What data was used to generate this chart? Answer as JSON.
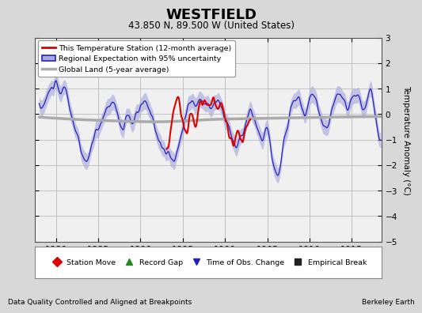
{
  "title": "WESTFIELD",
  "subtitle": "43.850 N, 89.500 W (United States)",
  "ylabel": "Temperature Anomaly (°C)",
  "xlabel_years": [
    1880,
    1885,
    1890,
    1895,
    1900,
    1905,
    1910,
    1915
  ],
  "xlim": [
    1877.5,
    1918.5
  ],
  "ylim": [
    -5,
    3
  ],
  "yticks": [
    -5,
    -4,
    -3,
    -2,
    -1,
    0,
    1,
    2,
    3
  ],
  "background_color": "#d8d8d8",
  "plot_bg_color": "#f0f0f0",
  "grid_color": "#bbbbbb",
  "footer_left": "Data Quality Controlled and Aligned at Breakpoints",
  "footer_right": "Berkeley Earth",
  "red_color": "#dd0000",
  "blue_color": "#2222bb",
  "blue_fill": "#aaaadd",
  "gray_color": "#aaaaaa",
  "legend1_items": [
    {
      "label": "This Temperature Station (12-month average)",
      "color": "#dd0000",
      "lw": 2.0
    },
    {
      "label": "Regional Expectation with 95% uncertainty",
      "color": "#2222bb",
      "fill": "#aaaadd",
      "lw": 1.5
    },
    {
      "label": "Global Land (5-year average)",
      "color": "#aaaaaa",
      "lw": 2.5
    }
  ],
  "legend2_items": [
    {
      "label": "Station Move",
      "color": "#dd0000",
      "marker": "D"
    },
    {
      "label": "Record Gap",
      "color": "#228822",
      "marker": "^"
    },
    {
      "label": "Time of Obs. Change",
      "color": "#2222bb",
      "marker": "v"
    },
    {
      "label": "Empirical Break",
      "color": "#222222",
      "marker": "s"
    }
  ]
}
